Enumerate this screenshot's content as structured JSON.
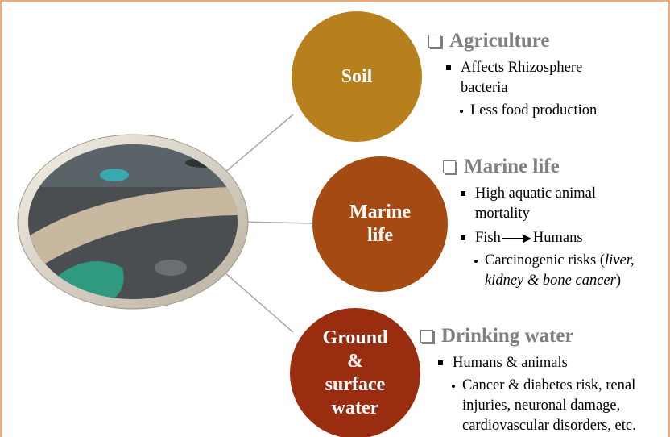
{
  "nodes": [
    {
      "label": "Soil"
    },
    {
      "label": "Marine life"
    },
    {
      "label": "Ground & surface water"
    }
  ],
  "sections": [
    {
      "heading": "Agriculture",
      "items": [
        {
          "text": "Affects Rhizosphere bacteria",
          "subitems": [
            "Less food production"
          ]
        }
      ]
    },
    {
      "heading": "Marine life",
      "items": [
        {
          "text": "High aquatic animal mortality"
        },
        {
          "from": "Fish",
          "to": "Humans",
          "subitems": [
            {
              "before": "Carcinogenic risks (",
              "italic": "liver, kidney & bone cancer",
              "after": ")"
            }
          ]
        }
      ]
    },
    {
      "heading": "Drinking water",
      "items": [
        {
          "text": "Humans & animals",
          "subitems": [
            "Cancer & diabetes risk, renal injuries, neuronal damage, cardiovascular disorders, etc."
          ]
        }
      ]
    }
  ]
}
